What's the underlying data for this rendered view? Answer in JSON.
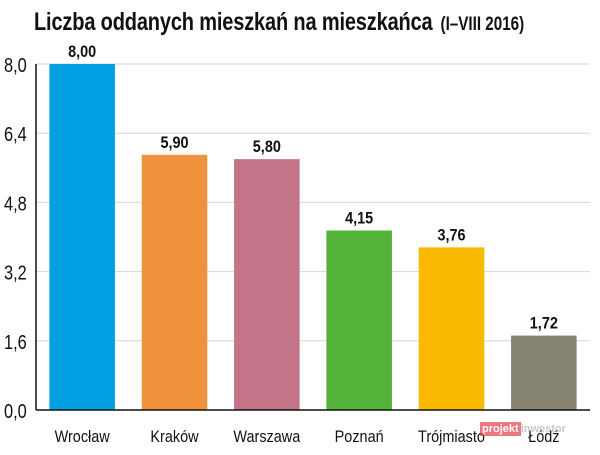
{
  "chart_data": {
    "type": "bar",
    "title": "Liczba oddanych mieszkań na mieszkańca",
    "subtitle": "(I–VIII 2016)",
    "categories": [
      "Wrocław",
      "Kraków",
      "Warszawa",
      "Poznań",
      "Trójmiasto",
      "Łódź"
    ],
    "values": [
      8.0,
      5.9,
      5.8,
      4.15,
      3.76,
      1.72
    ],
    "value_labels": [
      "8,00",
      "5,90",
      "5,80",
      "4,15",
      "3,76",
      "1,72"
    ],
    "colors": [
      "#00a0e3",
      "#f0923c",
      "#c47488",
      "#52b23a",
      "#fbb900",
      "#878472"
    ],
    "ylim": [
      0,
      8
    ],
    "yticks": [
      0,
      1.6,
      3.2,
      4.8,
      6.4,
      8.0
    ],
    "ytick_labels": [
      "0,0",
      "1,6",
      "3,2",
      "4,8",
      "6,4",
      "8,0"
    ],
    "grid": true,
    "xlabel": "",
    "ylabel": ""
  },
  "watermark": {
    "part1": "projekt",
    "part2": "inwestor"
  }
}
